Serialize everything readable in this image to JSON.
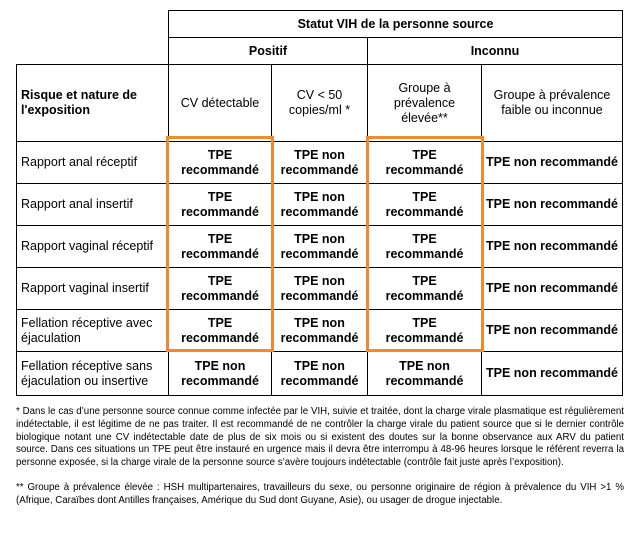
{
  "header": {
    "statut": "Statut VIH de la personne source",
    "positif": "Positif",
    "inconnu": "Inconnu"
  },
  "columns": {
    "risk": "Risque et nature de l'exposition",
    "cv_detect": "CV détectable",
    "cv_lt50": "CV < 50 copies/ml *",
    "prev_elevee": "Groupe à prévalence élevée**",
    "prev_faible": "Groupe à prévalence faible ou inconnue"
  },
  "rows": [
    {
      "label": "Rapport anal réceptif",
      "c1": "TPE recommandé",
      "c2": "TPE non recommandé",
      "c3": "TPE recommandé",
      "c4": "TPE non recommandé"
    },
    {
      "label": "Rapport anal insertif",
      "c1": "TPE recommandé",
      "c2": "TPE non recommandé",
      "c3": "TPE recommandé",
      "c4": "TPE non recommandé"
    },
    {
      "label": "Rapport vaginal réceptif",
      "c1": "TPE recommandé",
      "c2": "TPE non recommandé",
      "c3": "TPE recommandé",
      "c4": "TPE non recommandé"
    },
    {
      "label": "Rapport vaginal insertif",
      "c1": "TPE recommandé",
      "c2": "TPE non recommandé",
      "c3": "TPE recommandé",
      "c4": "TPE non recommandé"
    },
    {
      "label": "Fellation réceptive avec éjaculation",
      "c1": "TPE recommandé",
      "c2": "TPE non recommandé",
      "c3": "TPE recommandé",
      "c4": "TPE non recommandé"
    },
    {
      "label": "Fellation réceptive sans éjaculation ou insertive",
      "c1": "TPE non recommandé",
      "c2": "TPE non recommandé",
      "c3": "TPE non recommandé",
      "c4": "TPE non recommandé"
    }
  ],
  "notes": {
    "n1": "* Dans le cas d’une personne source connue comme infectée par le VIH, suivie et traitée, dont la charge virale plasmatique est régulièrement indétectable, il est légitime de ne pas traiter. Il est recommandé de ne contrôler la charge virale du patient source que si le dernier contrôle biologique notant une CV indétectable date de plus de six mois ou si existent des doutes sur la bonne observance aux ARV du patient source. Dans ces situations un TPE peut être instauré en urgence mais il devra être interrompu à 48-96 heures lorsque le référent reverra la personne exposée, si la charge virale de la personne source s’avère toujours indétectable (contrôle fait juste après l’exposition).",
    "n2": "** Groupe à prévalence élevée : HSH multipartenaires, travailleurs du sexe, ou personne originaire de région à prévalence du VIH >1 % (Afrique, Caraïbes dont Antilles françaises, Amérique du Sud dont Guyane, Asie), ou usager de drogue injectable."
  },
  "highlight_color": "#f08a2c"
}
